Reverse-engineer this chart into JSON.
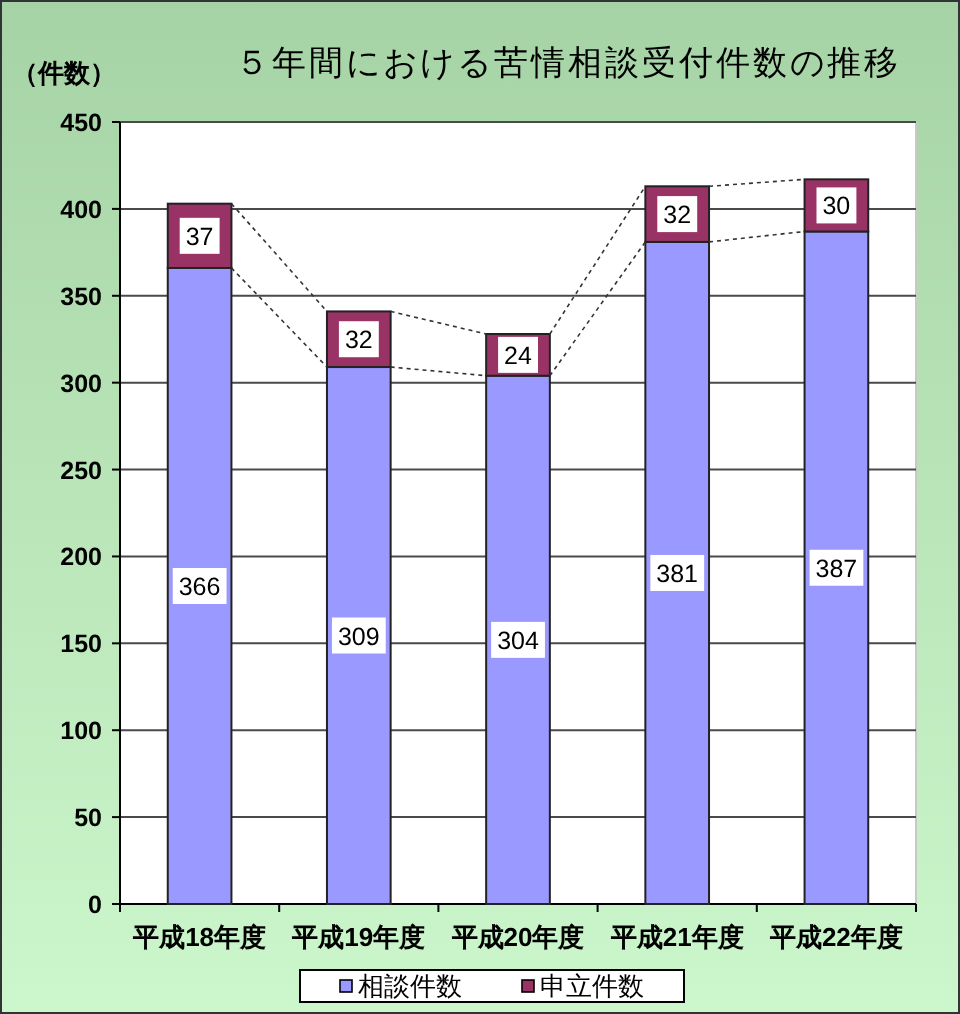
{
  "chart_data": {
    "type": "bar",
    "title": "５年間における苦情相談受付件数の推移",
    "ylabel": "（件数）",
    "categories": [
      "平成18年度",
      "平成19年度",
      "平成20年度",
      "平成21年度",
      "平成22年度"
    ],
    "series": [
      {
        "name": "相談件数",
        "color": "#9999ff",
        "values": [
          366,
          309,
          304,
          381,
          387
        ]
      },
      {
        "name": "申立件数",
        "color": "#993366",
        "values": [
          37,
          32,
          24,
          32,
          30
        ]
      }
    ],
    "stacked": true,
    "ylim": [
      0,
      450
    ],
    "yticks": [
      0,
      50,
      100,
      150,
      200,
      250,
      300,
      350,
      400,
      450
    ],
    "grid": "y",
    "legend": "bottom",
    "data_labels": true
  }
}
